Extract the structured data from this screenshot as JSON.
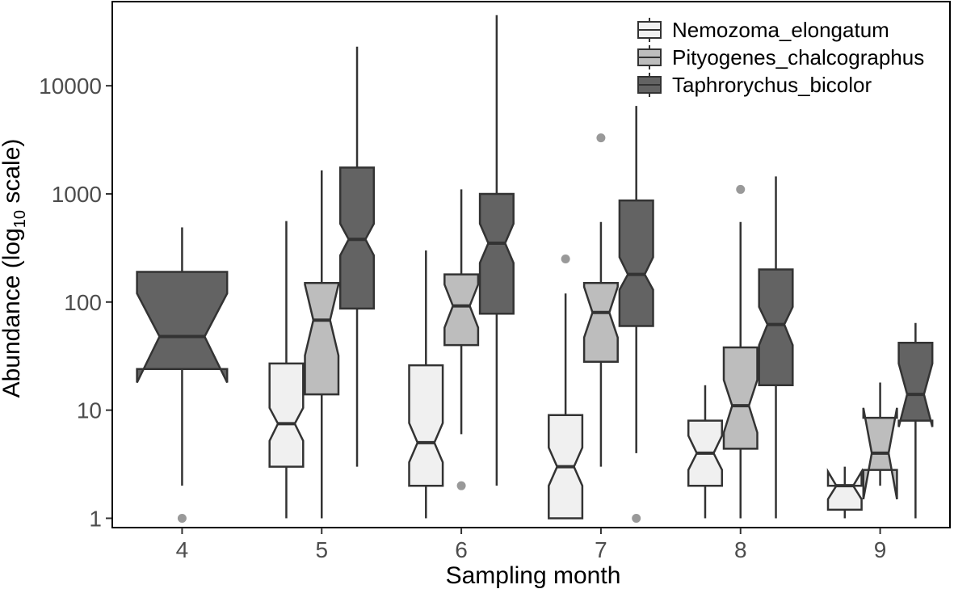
{
  "chart_data": {
    "type": "boxplot",
    "notched": true,
    "xlabel": "Sampling month",
    "ylabel": {
      "pre": "Abundance (log",
      "sub": "10",
      "post": " scale)"
    },
    "yscale": "log10",
    "ylim": [
      0.82,
      60000
    ],
    "yticks": [
      {
        "value": 1,
        "label": "1"
      },
      {
        "value": 10,
        "label": "10"
      },
      {
        "value": 100,
        "label": "100"
      },
      {
        "value": 1000,
        "label": "1000"
      },
      {
        "value": 10000,
        "label": "10000"
      }
    ],
    "categories": [
      "4",
      "5",
      "6",
      "7",
      "8",
      "9"
    ],
    "legend_position": "top-right",
    "colors": {
      "Nemozoma_elongatum": "#f0f0f0",
      "Pityogenes_chalcographus": "#bdbdbd",
      "Taphrorychus_bicolor": "#636363",
      "outline": "#333333",
      "outlier": "#999999"
    },
    "series": [
      {
        "name": "Nemozoma_elongatum",
        "boxes": [
          null,
          {
            "month": "5",
            "low": 1,
            "q1": 3,
            "notch_low": 5.2,
            "median": 7.5,
            "notch_high": 10.5,
            "q3": 27,
            "high": 560,
            "outliers": []
          },
          {
            "month": "6",
            "low": 1,
            "q1": 2,
            "notch_low": 3.3,
            "median": 5,
            "notch_high": 7.6,
            "q3": 26,
            "high": 300,
            "outliers": []
          },
          {
            "month": "7",
            "low": 1,
            "q1": 1,
            "notch_low": 2,
            "median": 3,
            "notch_high": 4.5,
            "q3": 9,
            "high": 120,
            "outliers": [
              250
            ]
          },
          {
            "month": "8",
            "low": 1,
            "q1": 2,
            "notch_low": 2.8,
            "median": 4,
            "notch_high": 5.8,
            "q3": 8,
            "high": 17,
            "outliers": []
          },
          {
            "month": "9",
            "low": 1,
            "q1": 1.2,
            "notch_low": 1.5,
            "median": 2,
            "notch_high": 2.7,
            "q3": 2,
            "high": 3,
            "outliers": []
          }
        ]
      },
      {
        "name": "Pityogenes_chalcographus",
        "boxes": [
          null,
          {
            "month": "5",
            "low": 1,
            "q1": 14,
            "notch_low": 32,
            "median": 68,
            "notch_high": 145,
            "q3": 150,
            "high": 1650,
            "outliers": []
          },
          {
            "month": "6",
            "low": 6,
            "q1": 40,
            "notch_low": 58,
            "median": 92,
            "notch_high": 145,
            "q3": 180,
            "high": 1100,
            "outliers": [
              2
            ]
          },
          {
            "month": "7",
            "low": 3,
            "q1": 28,
            "notch_low": 47,
            "median": 80,
            "notch_high": 138,
            "q3": 150,
            "high": 550,
            "outliers": [
              3300
            ]
          },
          {
            "month": "8",
            "low": 1,
            "q1": 4.4,
            "notch_low": 6.2,
            "median": 11,
            "notch_high": 19,
            "q3": 38,
            "high": 550,
            "outliers": [
              1100
            ]
          },
          {
            "month": "9",
            "low": 2,
            "q1": 2.8,
            "notch_low": 1.5,
            "median": 4,
            "notch_high": 10.5,
            "q3": 8.5,
            "high": 18,
            "outliers": []
          }
        ]
      },
      {
        "name": "Taphrorychus_bicolor",
        "boxes": [
          {
            "month": "4",
            "low": 2,
            "q1": 24,
            "notch_low": 18,
            "median": 48,
            "notch_high": 120,
            "q3": 190,
            "high": 490,
            "outliers": [
              1
            ]
          },
          {
            "month": "5",
            "low": 3,
            "q1": 87,
            "notch_low": 270,
            "median": 380,
            "notch_high": 530,
            "q3": 1750,
            "high": 23000,
            "outliers": []
          },
          {
            "month": "6",
            "low": 2,
            "q1": 78,
            "notch_low": 230,
            "median": 350,
            "notch_high": 530,
            "q3": 1000,
            "high": 45000,
            "outliers": []
          },
          {
            "month": "7",
            "low": 4,
            "q1": 60,
            "notch_low": 130,
            "median": 180,
            "notch_high": 260,
            "q3": 870,
            "high": 6500,
            "outliers": [
              1
            ]
          },
          {
            "month": "8",
            "low": 1,
            "q1": 17,
            "notch_low": 40,
            "median": 62,
            "notch_high": 90,
            "q3": 200,
            "high": 1450,
            "outliers": []
          },
          {
            "month": "9",
            "low": 1,
            "q1": 8,
            "notch_low": 7,
            "median": 14,
            "notch_high": 27,
            "q3": 42,
            "high": 64,
            "outliers": []
          }
        ]
      }
    ]
  }
}
